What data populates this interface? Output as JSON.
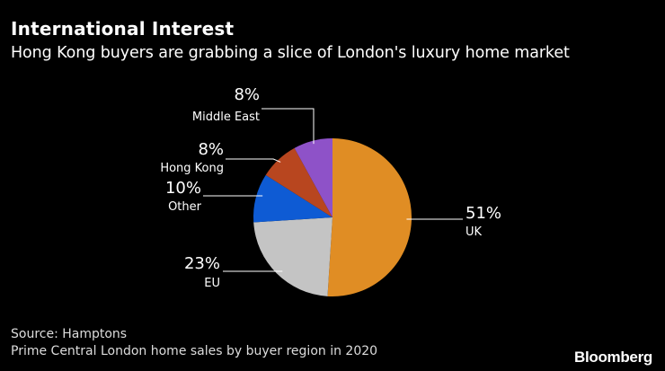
{
  "chart_data": {
    "type": "pie",
    "title": "International Interest",
    "subtitle": "Hong Kong buyers are grabbing a slice of London's luxury home market",
    "start": "12 o'clock, clockwise",
    "slices": [
      {
        "label": "UK",
        "value": 51,
        "value_label": "51%",
        "color": "#e08d24"
      },
      {
        "label": "EU",
        "value": 23,
        "value_label": "23%",
        "color": "#c4c4c4"
      },
      {
        "label": "Other",
        "value": 10,
        "value_label": "10%",
        "color": "#0e5bd4"
      },
      {
        "label": "Hong Kong",
        "value": 8,
        "value_label": "8%",
        "color": "#b8461f"
      },
      {
        "label": "Middle East",
        "value": 8,
        "value_label": "8%",
        "color": "#8e52c8"
      }
    ]
  },
  "footer": {
    "source": "Source: Hamptons",
    "note": "Prime Central London home sales by buyer region in 2020",
    "brand": "Bloomberg"
  }
}
